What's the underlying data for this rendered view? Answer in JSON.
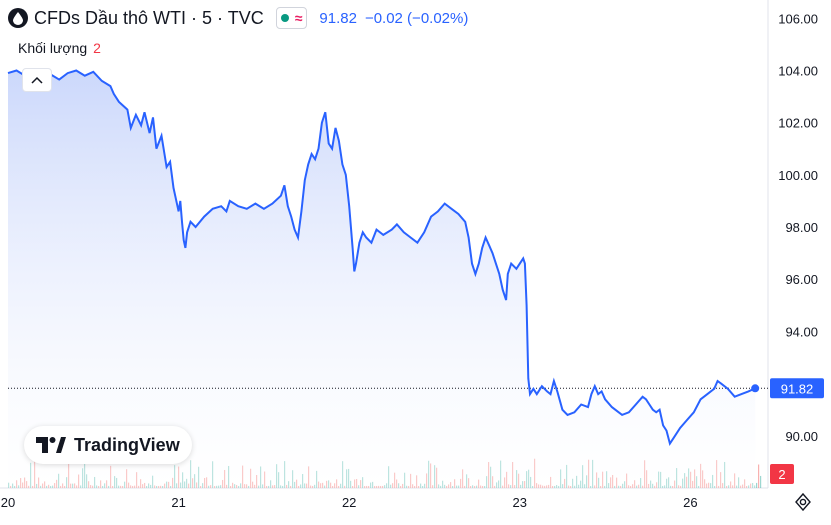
{
  "header": {
    "title": "CFDs Dầu thô WTI · 5 · TVC",
    "status_symbol": "≈",
    "last_price": "91.82",
    "change": "−0.02 (−0.02%)"
  },
  "volume_label": {
    "label": "Khối lượng",
    "value": "2"
  },
  "logo": {
    "text": "TradingView"
  },
  "badges": {
    "price": "91.82",
    "volume": "2"
  },
  "colors": {
    "line": "#2962ff",
    "area_top": "#cdd9fb",
    "up_volume": "#26a69a",
    "down_volume": "#ef5350",
    "badge_red": "#f23645"
  },
  "icons": [
    "collapse-chevron-icon",
    "settings-icon",
    "drop-icon"
  ],
  "chart_data": {
    "type": "area",
    "y_ticks": [
      "106.00",
      "104.00",
      "102.00",
      "100.00",
      "98.00",
      "96.00",
      "94.00",
      "92.00",
      "90.00"
    ],
    "ylim": [
      88.0,
      106.7
    ],
    "x_ticks": [
      {
        "label": "20",
        "x": 0
      },
      {
        "label": "21",
        "x": 1
      },
      {
        "label": "22",
        "x": 2
      },
      {
        "label": "23",
        "x": 3
      },
      {
        "label": "26",
        "x": 4
      }
    ],
    "xlim": [
      0,
      4.42
    ],
    "last_value": 91.82,
    "series": [
      {
        "values": [
          [
            0.0,
            103.9
          ],
          [
            0.05,
            104.0
          ],
          [
            0.1,
            103.8
          ],
          [
            0.15,
            103.95
          ],
          [
            0.2,
            103.7
          ],
          [
            0.25,
            103.85
          ],
          [
            0.3,
            103.65
          ],
          [
            0.35,
            103.9
          ],
          [
            0.4,
            104.0
          ],
          [
            0.45,
            103.8
          ],
          [
            0.5,
            103.95
          ],
          [
            0.55,
            103.6
          ],
          [
            0.6,
            103.4
          ],
          [
            0.62,
            103.1
          ],
          [
            0.65,
            102.8
          ],
          [
            0.7,
            102.5
          ],
          [
            0.72,
            101.8
          ],
          [
            0.75,
            102.3
          ],
          [
            0.78,
            101.9
          ],
          [
            0.8,
            102.4
          ],
          [
            0.83,
            101.6
          ],
          [
            0.85,
            102.2
          ],
          [
            0.87,
            101.0
          ],
          [
            0.9,
            101.5
          ],
          [
            0.93,
            100.3
          ],
          [
            0.95,
            100.5
          ],
          [
            0.97,
            99.5
          ],
          [
            0.98,
            99.2
          ],
          [
            1.0,
            98.6
          ],
          [
            1.01,
            99.0
          ],
          [
            1.02,
            98.2
          ],
          [
            1.03,
            97.5
          ],
          [
            1.04,
            97.2
          ],
          [
            1.05,
            97.8
          ],
          [
            1.07,
            98.2
          ],
          [
            1.1,
            98.0
          ],
          [
            1.15,
            98.4
          ],
          [
            1.2,
            98.7
          ],
          [
            1.25,
            98.8
          ],
          [
            1.28,
            98.6
          ],
          [
            1.3,
            99.0
          ],
          [
            1.35,
            98.8
          ],
          [
            1.4,
            98.7
          ],
          [
            1.45,
            98.9
          ],
          [
            1.5,
            98.7
          ],
          [
            1.55,
            98.9
          ],
          [
            1.6,
            99.2
          ],
          [
            1.62,
            99.6
          ],
          [
            1.64,
            98.8
          ],
          [
            1.66,
            98.4
          ],
          [
            1.68,
            97.9
          ],
          [
            1.7,
            97.6
          ],
          [
            1.72,
            98.6
          ],
          [
            1.74,
            99.8
          ],
          [
            1.76,
            100.4
          ],
          [
            1.78,
            100.8
          ],
          [
            1.8,
            100.6
          ],
          [
            1.82,
            101.0
          ],
          [
            1.84,
            102.0
          ],
          [
            1.86,
            102.4
          ],
          [
            1.88,
            101.2
          ],
          [
            1.9,
            101.0
          ],
          [
            1.92,
            101.8
          ],
          [
            1.94,
            101.3
          ],
          [
            1.96,
            100.4
          ],
          [
            1.98,
            100.0
          ],
          [
            2.0,
            98.8
          ],
          [
            2.01,
            98.0
          ],
          [
            2.02,
            97.2
          ],
          [
            2.03,
            96.3
          ],
          [
            2.04,
            96.6
          ],
          [
            2.06,
            97.4
          ],
          [
            2.08,
            97.8
          ],
          [
            2.1,
            97.6
          ],
          [
            2.13,
            97.4
          ],
          [
            2.16,
            97.9
          ],
          [
            2.2,
            97.7
          ],
          [
            2.25,
            97.9
          ],
          [
            2.28,
            98.1
          ],
          [
            2.32,
            97.8
          ],
          [
            2.36,
            97.6
          ],
          [
            2.4,
            97.4
          ],
          [
            2.44,
            97.8
          ],
          [
            2.48,
            98.4
          ],
          [
            2.52,
            98.6
          ],
          [
            2.56,
            98.9
          ],
          [
            2.6,
            98.7
          ],
          [
            2.64,
            98.5
          ],
          [
            2.68,
            98.2
          ],
          [
            2.7,
            97.6
          ],
          [
            2.72,
            96.6
          ],
          [
            2.74,
            96.2
          ],
          [
            2.76,
            96.6
          ],
          [
            2.78,
            97.2
          ],
          [
            2.8,
            97.6
          ],
          [
            2.82,
            97.3
          ],
          [
            2.84,
            97.0
          ],
          [
            2.86,
            96.6
          ],
          [
            2.88,
            96.2
          ],
          [
            2.9,
            95.6
          ],
          [
            2.92,
            95.2
          ],
          [
            2.93,
            96.2
          ],
          [
            2.95,
            96.6
          ],
          [
            2.98,
            96.4
          ],
          [
            3.0,
            96.6
          ],
          [
            3.02,
            96.8
          ],
          [
            3.03,
            96.6
          ],
          [
            3.04,
            95.0
          ],
          [
            3.05,
            92.2
          ],
          [
            3.06,
            91.6
          ],
          [
            3.08,
            91.8
          ],
          [
            3.1,
            91.6
          ],
          [
            3.13,
            91.9
          ],
          [
            3.16,
            91.7
          ],
          [
            3.18,
            91.6
          ],
          [
            3.2,
            92.1
          ],
          [
            3.22,
            91.7
          ],
          [
            3.25,
            91.0
          ],
          [
            3.28,
            90.8
          ],
          [
            3.32,
            90.9
          ],
          [
            3.36,
            91.2
          ],
          [
            3.4,
            91.1
          ],
          [
            3.42,
            91.6
          ],
          [
            3.44,
            91.9
          ],
          [
            3.46,
            91.6
          ],
          [
            3.48,
            91.7
          ],
          [
            3.5,
            91.4
          ],
          [
            3.54,
            91.1
          ],
          [
            3.58,
            90.9
          ],
          [
            3.6,
            90.8
          ],
          [
            3.64,
            90.9
          ],
          [
            3.68,
            91.2
          ],
          [
            3.72,
            91.5
          ],
          [
            3.74,
            91.4
          ],
          [
            3.76,
            91.2
          ],
          [
            3.78,
            91.0
          ],
          [
            3.8,
            90.9
          ],
          [
            3.82,
            91.0
          ],
          [
            3.84,
            90.4
          ],
          [
            3.86,
            90.2
          ],
          [
            3.88,
            89.7
          ],
          [
            3.9,
            89.9
          ],
          [
            3.94,
            90.3
          ],
          [
            3.98,
            90.6
          ],
          [
            4.02,
            90.9
          ],
          [
            4.06,
            91.4
          ],
          [
            4.1,
            91.6
          ],
          [
            4.14,
            91.8
          ],
          [
            4.16,
            92.1
          ],
          [
            4.18,
            92.0
          ],
          [
            4.22,
            91.8
          ],
          [
            4.26,
            91.5
          ],
          [
            4.3,
            91.6
          ],
          [
            4.34,
            91.7
          ],
          [
            4.38,
            91.82
          ]
        ]
      }
    ]
  }
}
